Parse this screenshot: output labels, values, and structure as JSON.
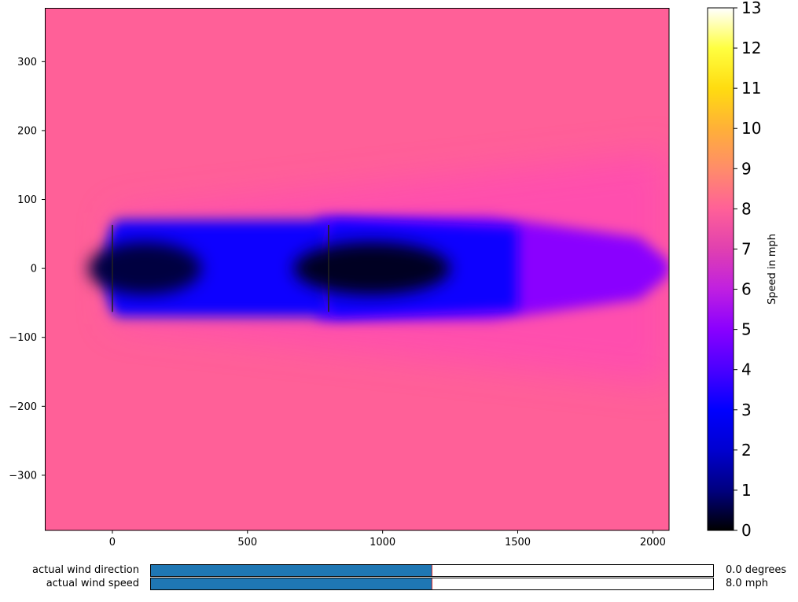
{
  "chart_data": [
    {
      "type": "heatmap",
      "xlim": [
        -250,
        2060
      ],
      "ylim": [
        -380,
        378
      ],
      "x_ticks": [
        0,
        500,
        1000,
        1500,
        2000
      ],
      "y_ticks": [
        300,
        200,
        100,
        0,
        -100,
        -200,
        -300
      ],
      "x_tick_labels": [
        "0",
        "500",
        "1000",
        "1500",
        "2000"
      ],
      "y_tick_labels": [
        "300",
        "200",
        "100",
        "0",
        "−100",
        "−200",
        "−300"
      ],
      "free_stream_speed": 8.0,
      "turbines": [
        {
          "x": 0,
          "y_min": -63,
          "y_max": 63
        },
        {
          "x": 800,
          "y_min": -63,
          "y_max": 63
        }
      ],
      "colorbar": {
        "label": "Speed in mph",
        "range": [
          0,
          13
        ],
        "ticks": [
          0,
          1,
          2,
          3,
          4,
          5,
          6,
          7,
          8,
          9,
          10,
          11,
          12,
          13
        ],
        "tick_labels": [
          "0",
          "1",
          "2",
          "3",
          "4",
          "5",
          "6",
          "7",
          "8",
          "9",
          "10",
          "11",
          "12",
          "13"
        ],
        "colormap": "gnuplot2"
      },
      "colors": {
        "turbine_line": "#222222",
        "axes_frame": "#000000"
      }
    }
  ],
  "sliders": [
    {
      "label": "actual wind direction",
      "value_text": "0.0 degrees",
      "fraction": 0.5
    },
    {
      "label": "actual wind speed",
      "value_text": "8.0 mph",
      "fraction": 0.5
    }
  ],
  "colors": {
    "slider_fill": "#1f77b4",
    "slider_marker": "#d62728"
  }
}
